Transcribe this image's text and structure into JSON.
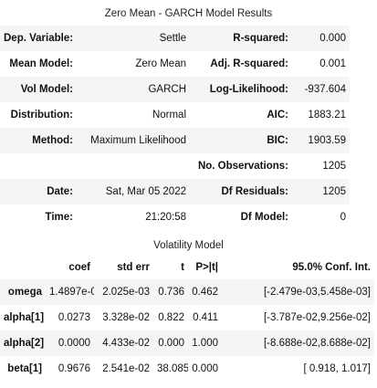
{
  "results": {
    "caption": "Zero Mean - GARCH Model Results",
    "rows": [
      {
        "l1": "Dep. Variable:",
        "v1": "Settle",
        "l2": "R-squared:",
        "v2": "0.000"
      },
      {
        "l1": "Mean Model:",
        "v1": "Zero Mean",
        "l2": "Adj. R-squared:",
        "v2": "0.001"
      },
      {
        "l1": "Vol Model:",
        "v1": "GARCH",
        "l2": "Log-Likelihood:",
        "v2": "-937.604"
      },
      {
        "l1": "Distribution:",
        "v1": "Normal",
        "l2": "AIC:",
        "v2": "1883.21"
      },
      {
        "l1": "Method:",
        "v1": "Maximum Likelihood",
        "l2": "BIC:",
        "v2": "1903.59"
      },
      {
        "l1": "",
        "v1": "",
        "l2": "No. Observations:",
        "v2": "1205"
      },
      {
        "l1": "Date:",
        "v1": "Sat, Mar 05 2022",
        "l2": "Df Residuals:",
        "v2": "1205"
      },
      {
        "l1": "Time:",
        "v1": "21:20:58",
        "l2": "Df Model:",
        "v2": "0"
      }
    ]
  },
  "volatility": {
    "caption": "Volatility Model",
    "headers": [
      "",
      "coef",
      "std err",
      "t",
      "P>|t|",
      "95.0% Conf. Int."
    ],
    "rows": [
      {
        "name": "omega",
        "coef": "1.4897e-03",
        "std_err": "2.025e-03",
        "t": "0.736",
        "p": "0.462",
        "ci": "[-2.479e-03,5.458e-03]"
      },
      {
        "name": "alpha[1]",
        "coef": "0.0273",
        "std_err": "3.328e-02",
        "t": "0.822",
        "p": "0.411",
        "ci": "[-3.787e-02,9.256e-02]"
      },
      {
        "name": "alpha[2]",
        "coef": "0.0000",
        "std_err": "4.433e-02",
        "t": "0.000",
        "p": "1.000",
        "ci": "[-8.688e-02,8.688e-02]"
      },
      {
        "name": "beta[1]",
        "coef": "0.9676",
        "std_err": "2.541e-02",
        "t": "38.085",
        "p": "0.000",
        "ci": "[ 0.918, 1.017]"
      }
    ]
  }
}
